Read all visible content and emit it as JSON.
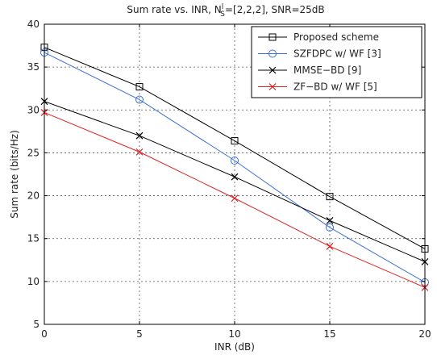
{
  "chart_data": {
    "type": "line",
    "title_prefix": "Sum rate vs. INR, N",
    "title_sub": "S",
    "title_sup": "l",
    "title_suffix": "=[2,2,2], SNR=25dB",
    "xlabel": "INR (dB)",
    "ylabel": "Sum rate (bits/Hz)",
    "xlim": [
      0,
      20
    ],
    "ylim": [
      5,
      40
    ],
    "xticks": [
      0,
      5,
      10,
      15,
      20
    ],
    "yticks": [
      5,
      10,
      15,
      20,
      25,
      30,
      35,
      40
    ],
    "grid": true,
    "legend_position": "top-right",
    "x": [
      0,
      5,
      10,
      15,
      20
    ],
    "series": [
      {
        "name": "Proposed scheme",
        "values": [
          37.3,
          32.7,
          26.4,
          19.9,
          13.8
        ],
        "color": "#000000",
        "marker": "square"
      },
      {
        "name": "SZFDPC w/ WF [3]",
        "values": [
          36.7,
          31.2,
          24.1,
          16.3,
          9.9
        ],
        "color": "#3b6fd4",
        "marker": "circle"
      },
      {
        "name": "MMSE−BD [9]",
        "values": [
          31.0,
          27.0,
          22.2,
          17.1,
          12.3
        ],
        "color": "#000000",
        "marker": "x"
      },
      {
        "name": "ZF−BD w/ WF [5]",
        "values": [
          29.7,
          25.1,
          19.7,
          14.1,
          9.3
        ],
        "color": "#e02020",
        "marker": "x"
      }
    ]
  }
}
